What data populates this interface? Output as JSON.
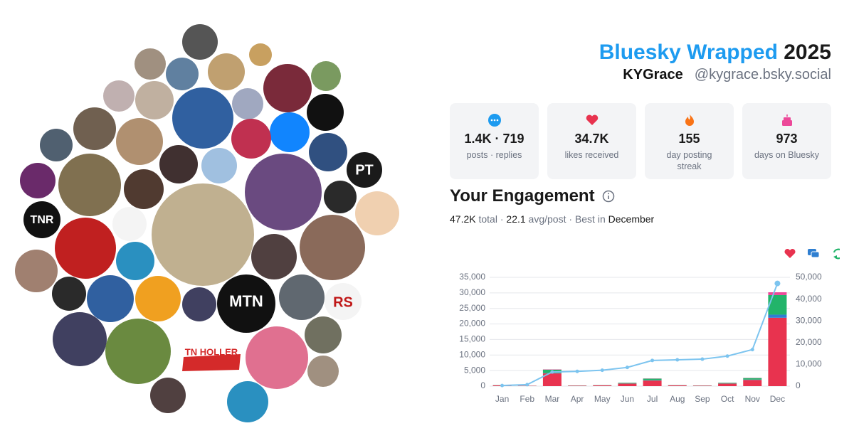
{
  "header": {
    "brand": "Bluesky Wrapped",
    "year": "2025",
    "display_name": "KYGrace",
    "handle": "@kygrace.bsky.social"
  },
  "avatar_labels": [
    "PT",
    "MTN",
    "TN HOLLER",
    "TNR",
    "RS"
  ],
  "stats": [
    {
      "value": "1.4K · 719",
      "label": "posts · replies",
      "color": "#1d9bf0"
    },
    {
      "value": "34.7K",
      "label": "likes received",
      "color": "#e8334f"
    },
    {
      "value": "155",
      "label": "day posting streak",
      "color": "#f97316"
    },
    {
      "value": "973",
      "label": "days on Bluesky",
      "color": "#ec4899"
    }
  ],
  "engagement": {
    "title": "Your Engagement",
    "total": "47.2K",
    "total_label": "total",
    "separator": "·",
    "avg": "22.1",
    "avg_label": "avg/post",
    "best_label": "Best in",
    "best": "December"
  },
  "chart_data": {
    "type": "bar",
    "stacked": true,
    "categories": [
      "Jan",
      "Feb",
      "Mar",
      "Apr",
      "May",
      "Jun",
      "Jul",
      "Aug",
      "Sep",
      "Oct",
      "Nov",
      "Dec"
    ],
    "series": [
      {
        "color": "#e8334f",
        "values": [
          250,
          100,
          4100,
          150,
          250,
          800,
          1800,
          250,
          150,
          800,
          2000,
          22000
        ]
      },
      {
        "color": "#2f7fd1",
        "values": [
          20,
          10,
          100,
          20,
          20,
          50,
          100,
          20,
          20,
          50,
          100,
          1000
        ]
      },
      {
        "color": "#22b46a",
        "values": [
          50,
          20,
          1100,
          50,
          50,
          200,
          500,
          50,
          50,
          200,
          500,
          6300
        ]
      },
      {
        "color": "#ec4899",
        "values": [
          10,
          5,
          100,
          10,
          10,
          30,
          60,
          10,
          10,
          30,
          60,
          900
        ]
      },
      {
        "type": "line",
        "axis": "y2",
        "color": "#7cc4ef",
        "values": [
          300,
          700,
          6500,
          6800,
          7300,
          8600,
          11800,
          12100,
          12400,
          13800,
          16800,
          47200
        ]
      }
    ],
    "ylim": [
      0,
      35000
    ],
    "yticks": [
      0,
      {
        "value": 5000,
        "label": "5,000"
      },
      {
        "value": 10000,
        "label": "10,000"
      },
      {
        "value": 15000,
        "label": "15,000"
      },
      {
        "value": 20000,
        "label": "20,000"
      },
      {
        "value": 25000,
        "label": "25,000"
      },
      {
        "value": 30000,
        "label": "30,000"
      },
      {
        "value": 35000,
        "label": "35,000"
      }
    ],
    "y2lim": [
      0,
      50000
    ],
    "y2ticks": [
      0,
      {
        "value": 10000,
        "label": "10,000"
      },
      {
        "value": 20000,
        "label": "20,000"
      },
      {
        "value": 30000,
        "label": "30,000"
      },
      {
        "value": 40000,
        "label": "40,000"
      },
      {
        "value": 50000,
        "label": "50,000"
      }
    ],
    "grid": true,
    "legend": "top-right"
  }
}
